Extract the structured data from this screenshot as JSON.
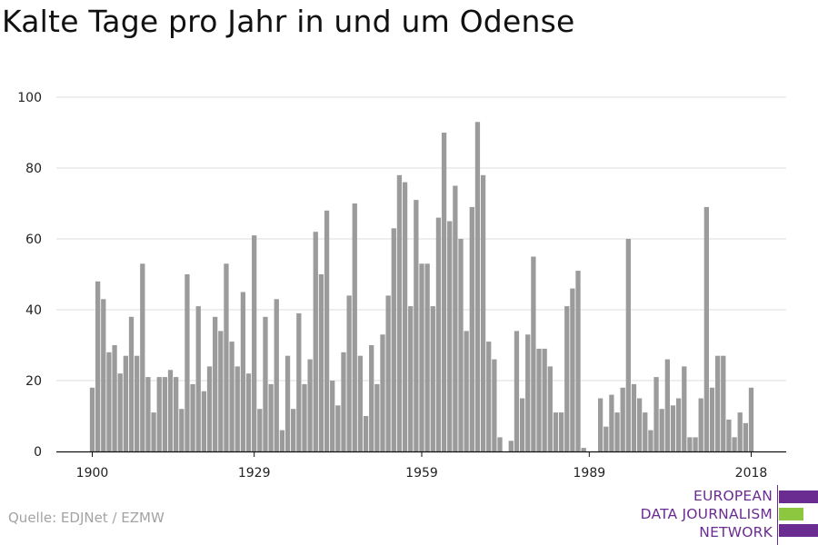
{
  "title": "Kalte Tage pro Jahr in und um Odense",
  "source": "Quelle: EDJNet / EZMW",
  "logo": {
    "lines": [
      "EUROPEAN",
      "DATA JOURNALISM",
      "NETWORK"
    ],
    "colors": {
      "purple": "#6a2c91",
      "green": "#8dc63f"
    }
  },
  "chart_data": {
    "type": "bar",
    "title": "Kalte Tage pro Jahr in und um Odense",
    "xlabel": "",
    "ylabel": "",
    "x_start": 1900,
    "x_end": 2018,
    "xticks": [
      1900,
      1929,
      1959,
      1989,
      2018
    ],
    "yticks": [
      0,
      20,
      40,
      60,
      80,
      100
    ],
    "ylim": [
      0,
      100
    ],
    "grid": true,
    "bar_color": "#9b9b9b",
    "values": [
      18,
      48,
      43,
      28,
      30,
      22,
      27,
      38,
      27,
      53,
      21,
      11,
      21,
      21,
      23,
      21,
      12,
      50,
      19,
      41,
      17,
      24,
      38,
      34,
      53,
      31,
      24,
      45,
      22,
      61,
      12,
      38,
      19,
      43,
      6,
      27,
      12,
      39,
      19,
      26,
      62,
      50,
      68,
      20,
      13,
      28,
      44,
      70,
      27,
      10,
      30,
      19,
      33,
      44,
      63,
      78,
      76,
      41,
      71,
      53,
      53,
      41,
      66,
      90,
      65,
      75,
      60,
      34,
      69,
      93,
      78,
      31,
      26,
      4,
      0,
      3,
      34,
      15,
      33,
      55,
      29,
      29,
      24,
      11,
      11,
      41,
      46,
      51,
      1,
      0,
      0,
      15,
      7,
      16,
      11,
      18,
      60,
      19,
      15,
      11,
      6,
      21,
      12,
      26,
      13,
      15,
      24,
      4,
      4,
      15,
      69,
      18,
      27,
      27,
      9,
      4,
      11,
      8,
      18
    ]
  }
}
